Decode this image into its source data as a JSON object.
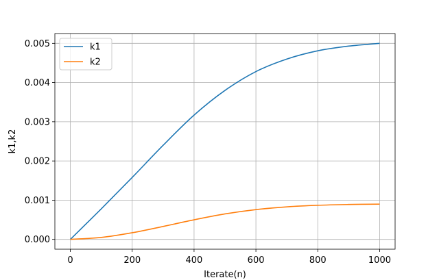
{
  "chart_data": {
    "type": "line",
    "title": "",
    "xlabel": "Iterate(n)",
    "ylabel": "k1,k2",
    "xlim": [
      -50,
      1050
    ],
    "ylim": [
      -0.00025,
      0.00525
    ],
    "xticks": [
      0,
      200,
      400,
      600,
      800,
      1000
    ],
    "xtick_labels": [
      "0",
      "200",
      "400",
      "600",
      "800",
      "1000"
    ],
    "yticks": [
      0.0,
      0.001,
      0.002,
      0.003,
      0.004,
      0.005
    ],
    "ytick_labels": [
      "0.000",
      "0.001",
      "0.002",
      "0.003",
      "0.004",
      "0.005"
    ],
    "grid": true,
    "legend_position": "upper-left",
    "x": [
      0,
      100,
      200,
      300,
      400,
      500,
      600,
      700,
      800,
      900,
      1000
    ],
    "series": [
      {
        "name": "k1",
        "color": "#1f77b4",
        "values": [
          0.0,
          0.00078,
          0.00158,
          0.0024,
          0.00317,
          0.0038,
          0.00428,
          0.0046,
          0.00481,
          0.00493,
          0.005
        ]
      },
      {
        "name": "k2",
        "color": "#ff7f0e",
        "values": [
          0.0,
          5e-05,
          0.00017,
          0.00033,
          0.0005,
          0.00065,
          0.00076,
          0.00083,
          0.00087,
          0.00089,
          0.0009
        ]
      }
    ]
  }
}
